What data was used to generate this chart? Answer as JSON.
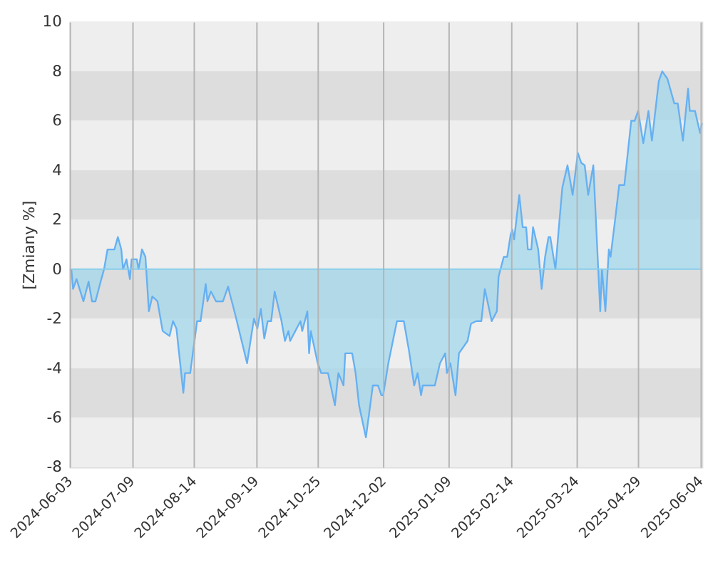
{
  "chart_data": {
    "type": "area",
    "ylabel": "[Zmiany %]",
    "x": [
      "2024-06-04",
      "2024-06-05",
      "2024-06-07",
      "2024-06-11",
      "2024-06-14",
      "2024-06-16",
      "2024-06-18",
      "2024-06-21",
      "2024-06-23",
      "2024-06-25",
      "2024-06-29",
      "2024-07-01",
      "2024-07-03",
      "2024-07-04",
      "2024-07-06",
      "2024-07-08",
      "2024-07-09",
      "2024-07-12",
      "2024-07-13",
      "2024-07-15",
      "2024-07-17",
      "2024-07-19",
      "2024-07-21",
      "2024-07-24",
      "2024-07-27",
      "2024-07-31",
      "2024-08-02",
      "2024-08-04",
      "2024-08-08",
      "2024-08-09",
      "2024-08-12",
      "2024-08-16",
      "2024-08-18",
      "2024-08-21",
      "2024-08-22",
      "2024-08-24",
      "2024-08-27",
      "2024-08-31",
      "2024-09-03",
      "2024-09-04",
      "2024-09-07",
      "2024-09-14",
      "2024-09-16",
      "2024-09-18",
      "2024-09-20",
      "2024-09-22",
      "2024-09-24",
      "2024-09-26",
      "2024-09-28",
      "2024-09-30",
      "2024-10-04",
      "2024-10-06",
      "2024-10-08",
      "2024-10-09",
      "2024-10-12",
      "2024-10-15",
      "2024-10-16",
      "2024-10-19",
      "2024-10-20",
      "2024-10-21",
      "2024-10-25",
      "2024-10-27",
      "2024-10-31",
      "2024-11-04",
      "2024-11-06",
      "2024-11-09",
      "2024-11-10",
      "2024-11-14",
      "2024-11-16",
      "2024-11-18",
      "2024-11-22",
      "2024-11-26",
      "2024-11-29",
      "2024-12-01",
      "2024-12-02",
      "2024-12-05",
      "2024-12-10",
      "2024-12-14",
      "2024-12-17",
      "2024-12-20",
      "2024-12-22",
      "2024-12-24",
      "2024-12-25",
      "2025-01-01",
      "2025-01-04",
      "2025-01-07",
      "2025-01-08",
      "2025-01-10",
      "2025-01-13",
      "2025-01-15",
      "2025-01-20",
      "2025-01-22",
      "2025-01-25",
      "2025-01-28",
      "2025-01-30",
      "2025-02-03",
      "2025-02-06",
      "2025-02-07",
      "2025-02-10",
      "2025-02-12",
      "2025-02-14",
      "2025-02-15",
      "2025-02-16",
      "2025-02-19",
      "2025-02-21",
      "2025-02-23",
      "2025-02-24",
      "2025-02-26",
      "2025-02-27",
      "2025-03-02",
      "2025-03-04",
      "2025-03-06",
      "2025-03-08",
      "2025-03-09",
      "2025-03-12",
      "2025-03-14",
      "2025-03-16",
      "2025-03-19",
      "2025-03-22",
      "2025-03-25",
      "2025-03-27",
      "2025-03-29",
      "2025-03-31",
      "2025-04-03",
      "2025-04-07",
      "2025-04-08",
      "2025-04-10",
      "2025-04-12",
      "2025-04-13",
      "2025-04-16",
      "2025-04-18",
      "2025-04-21",
      "2025-04-25",
      "2025-04-27",
      "2025-04-29",
      "2025-05-02",
      "2025-05-05",
      "2025-05-07",
      "2025-05-11",
      "2025-05-13",
      "2025-05-16",
      "2025-05-20",
      "2025-05-22",
      "2025-05-25",
      "2025-05-28",
      "2025-05-29",
      "2025-06-01",
      "2025-06-04",
      "2025-06-05"
    ],
    "series": [
      {
        "color": "#66b0f2",
        "values": [
          0,
          -0.8,
          -0.4,
          -1.3,
          -0.5,
          -1.3,
          -1.3,
          -0.5,
          0,
          0.8,
          0.8,
          1.3,
          0.8,
          0,
          0.4,
          -0.4,
          0.4,
          0.4,
          0,
          0.8,
          0.5,
          -1.7,
          -1.1,
          -1.3,
          -2.5,
          -2.7,
          -2.1,
          -2.4,
          -5.0,
          -4.2,
          -4.2,
          -2.1,
          -2.1,
          -0.6,
          -1.3,
          -0.9,
          -1.3,
          -1.3,
          -0.7,
          -1.0,
          -1.8,
          -3.8,
          -2.9,
          -2.0,
          -2.4,
          -1.6,
          -2.8,
          -2.1,
          -2.1,
          -0.9,
          -2.1,
          -2.9,
          -2.5,
          -2.9,
          -2.5,
          -2.1,
          -2.5,
          -1.7,
          -3.4,
          -2.5,
          -3.8,
          -4.2,
          -4.2,
          -5.5,
          -4.2,
          -4.7,
          -3.4,
          -3.4,
          -4.2,
          -5.5,
          -6.8,
          -4.7,
          -4.7,
          -5.1,
          -5.1,
          -3.8,
          -2.1,
          -2.1,
          -3.3,
          -4.7,
          -4.2,
          -5.1,
          -4.7,
          -4.7,
          -3.8,
          -3.4,
          -4.2,
          -3.8,
          -5.1,
          -3.4,
          -2.9,
          -2.2,
          -2.1,
          -2.1,
          -0.8,
          -2.1,
          -1.7,
          -0.3,
          0.5,
          0.5,
          1.4,
          1.6,
          1.2,
          3.0,
          1.7,
          1.7,
          0.8,
          0.8,
          1.7,
          0.8,
          -0.8,
          0.5,
          1.3,
          1.3,
          0,
          1.7,
          3.3,
          4.2,
          3.0,
          4.7,
          4.3,
          4.2,
          3.0,
          4.2,
          -1.7,
          0,
          -1.7,
          0.8,
          0.5,
          2.2,
          3.4,
          3.4,
          6.0,
          6.0,
          6.4,
          5.1,
          6.4,
          5.2,
          7.6,
          8.0,
          7.7,
          6.7,
          6.7,
          5.2,
          7.3,
          6.4,
          6.4,
          5.5,
          5.9
        ]
      }
    ],
    "xlim": [
      "2024-06-03",
      "2025-06-05"
    ],
    "xticks": [
      "2024-06-03",
      "2024-07-09",
      "2024-08-14",
      "2024-09-19",
      "2024-10-25",
      "2024-12-02",
      "2025-01-09",
      "2025-02-14",
      "2025-03-24",
      "2025-04-29",
      "2025-06-04"
    ],
    "ylim": [
      -8,
      10
    ],
    "yticks": [
      -8,
      -6,
      -4,
      -2,
      0,
      2,
      4,
      6,
      8,
      10
    ],
    "bands": [
      {
        "axis": "y",
        "from": 8,
        "to": 10,
        "color": "#eeeeee"
      },
      {
        "axis": "y",
        "from": 6,
        "to": 8,
        "color": "#dddddd"
      },
      {
        "axis": "y",
        "from": 4,
        "to": 6,
        "color": "#eeeeee"
      },
      {
        "axis": "y",
        "from": 2,
        "to": 4,
        "color": "#dddddd"
      },
      {
        "axis": "y",
        "from": 0,
        "to": 2,
        "color": "#eeeeee"
      },
      {
        "axis": "y",
        "from": -2,
        "to": 0,
        "color": "#dddddd"
      },
      {
        "axis": "y",
        "from": -4,
        "to": -2,
        "color": "#eeeeee"
      },
      {
        "axis": "y",
        "from": -6,
        "to": -4,
        "color": "#dddddd"
      },
      {
        "axis": "y",
        "from": -8,
        "to": -6,
        "color": "#eeeeee"
      }
    ],
    "ref_lines": [
      {
        "axis": "y",
        "value": 0,
        "color": "#87ceeb"
      }
    ],
    "grid": "x"
  }
}
